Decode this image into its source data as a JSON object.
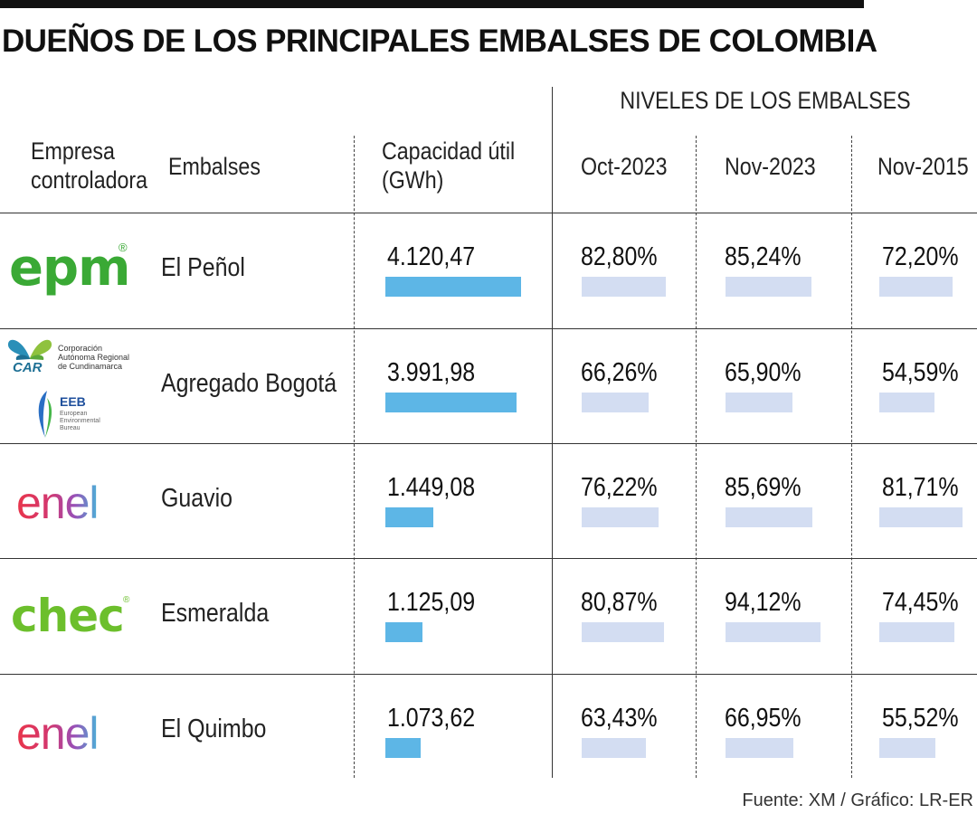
{
  "title": "DUEÑOS DE LOS PRINCIPALES EMBALSES DE COLOMBIA",
  "source": "Fuente: XM / Gráfico: LR-ER",
  "headers": {
    "company_line1": "Empresa",
    "company_line2": "controladora",
    "reservoirs": "Embalses",
    "capacity_line1": "Capacidad útil",
    "capacity_line2": "(GWh)",
    "levels_group": "NIVELES DE LOS EMBALSES",
    "levels": [
      "Oct-2023",
      "Nov-2023",
      "Nov-2015"
    ]
  },
  "logos": {
    "epm": "epm",
    "epm_mark": "®",
    "car_text1": "Corporación",
    "car_text2": "Autónoma Regional",
    "car_text3": "de Cundinamarca",
    "car_abbr": "CAR",
    "eeb_abbr": "EEB",
    "eeb_text1": "European",
    "eeb_text2": "Environmental",
    "eeb_text3": "Bureau",
    "enel": "enel",
    "chec": "chec",
    "chec_mark": "®"
  },
  "colors": {
    "capacity_bar": "#5db6e6",
    "level_bar": "#d3ddf2",
    "epm_green": "#3aa935",
    "chec_green": "#6cbf2c"
  },
  "chart_data": {
    "type": "table",
    "columns": [
      "Empresa controladora",
      "Embalses",
      "Capacidad útil (GWh)",
      "Oct-2023",
      "Nov-2023",
      "Nov-2015"
    ],
    "rows": [
      {
        "company_logo": "epm",
        "reservoir": "El Peñol",
        "capacity": 4120.47,
        "capacity_label": "4.120,47",
        "levels": [
          82.8,
          85.24,
          72.2
        ],
        "level_labels": [
          "82,80%",
          "85,24%",
          "72,20%"
        ]
      },
      {
        "company_logo": "car-eeb",
        "reservoir": "Agregado Bogotá",
        "capacity": 3991.98,
        "capacity_label": "3.991,98",
        "levels": [
          66.26,
          65.9,
          54.59
        ],
        "level_labels": [
          "66,26%",
          "65,90%",
          "54,59%"
        ]
      },
      {
        "company_logo": "enel",
        "reservoir": "Guavio",
        "capacity": 1449.08,
        "capacity_label": "1.449,08",
        "levels": [
          76.22,
          85.69,
          81.71
        ],
        "level_labels": [
          "76,22%",
          "85,69%",
          "81,71%"
        ]
      },
      {
        "company_logo": "chec",
        "reservoir": "Esmeralda",
        "capacity": 1125.09,
        "capacity_label": "1.125,09",
        "levels": [
          80.87,
          94.12,
          74.45
        ],
        "level_labels": [
          "80,87%",
          "94,12%",
          "74,45%"
        ]
      },
      {
        "company_logo": "enel",
        "reservoir": "El Quimbo",
        "capacity": 1073.62,
        "capacity_label": "1.073,62",
        "levels": [
          63.43,
          66.95,
          55.52
        ],
        "level_labels": [
          "63,43%",
          "66,95%",
          "55,52%"
        ]
      }
    ]
  }
}
